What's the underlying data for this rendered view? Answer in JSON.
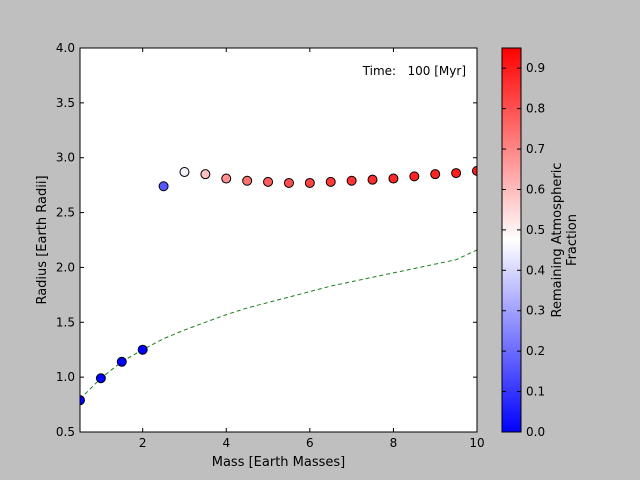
{
  "chart_data": {
    "type": "scatter",
    "xlabel": "Mass [Earth Masses]",
    "ylabel": "Radius [Earth Radii]",
    "xlim": [
      0.5,
      10
    ],
    "ylim": [
      0.5,
      4.0
    ],
    "x_ticks": [
      2,
      4,
      6,
      8,
      10
    ],
    "y_ticks": [
      0.5,
      1.0,
      1.5,
      2.0,
      2.5,
      3.0,
      3.5,
      4.0
    ],
    "x_tick_labels": [
      "2",
      "4",
      "6",
      "8",
      "10"
    ],
    "y_tick_labels": [
      "0.5",
      "1.0",
      "1.5",
      "2.0",
      "2.5",
      "3.0",
      "3.5",
      "4.0"
    ],
    "annotation": "Time:   100 [Myr]",
    "grid": false,
    "points": [
      {
        "mass": 0.5,
        "radius": 0.79,
        "fraction": 0.0
      },
      {
        "mass": 1.0,
        "radius": 0.99,
        "fraction": 0.0
      },
      {
        "mass": 1.5,
        "radius": 1.14,
        "fraction": 0.0
      },
      {
        "mass": 2.0,
        "radius": 1.25,
        "fraction": 0.0
      },
      {
        "mass": 2.5,
        "radius": 2.74,
        "fraction": 0.17
      },
      {
        "mass": 3.0,
        "radius": 2.87,
        "fraction": 0.48
      },
      {
        "mass": 3.5,
        "radius": 2.85,
        "fraction": 0.62
      },
      {
        "mass": 4.0,
        "radius": 2.81,
        "fraction": 0.72
      },
      {
        "mass": 4.5,
        "radius": 2.79,
        "fraction": 0.78
      },
      {
        "mass": 5.0,
        "radius": 2.78,
        "fraction": 0.82
      },
      {
        "mass": 5.5,
        "radius": 2.77,
        "fraction": 0.85
      },
      {
        "mass": 6.0,
        "radius": 2.77,
        "fraction": 0.87
      },
      {
        "mass": 6.5,
        "radius": 2.78,
        "fraction": 0.89
      },
      {
        "mass": 7.0,
        "radius": 2.79,
        "fraction": 0.9
      },
      {
        "mass": 7.5,
        "radius": 2.8,
        "fraction": 0.91
      },
      {
        "mass": 8.0,
        "radius": 2.81,
        "fraction": 0.92
      },
      {
        "mass": 8.5,
        "radius": 2.83,
        "fraction": 0.93
      },
      {
        "mass": 9.0,
        "radius": 2.85,
        "fraction": 0.93
      },
      {
        "mass": 9.5,
        "radius": 2.86,
        "fraction": 0.94
      },
      {
        "mass": 10.0,
        "radius": 2.88,
        "fraction": 0.95
      }
    ],
    "dashed_curve": {
      "color": "#1a7f1a",
      "style": "dashed",
      "x": [
        0.5,
        1.0,
        1.5,
        2.0,
        2.5,
        3.0,
        3.5,
        4.0,
        4.5,
        5.0,
        5.5,
        6.0,
        6.5,
        7.0,
        7.5,
        8.0,
        8.5,
        9.0,
        9.5,
        10.0
      ],
      "y": [
        0.8,
        0.99,
        1.14,
        1.25,
        1.35,
        1.43,
        1.5,
        1.57,
        1.63,
        1.68,
        1.73,
        1.78,
        1.83,
        1.87,
        1.91,
        1.95,
        1.99,
        2.03,
        2.07,
        2.16
      ]
    },
    "colorbar": {
      "label": "Remaining Atmospheric\nFraction",
      "range": [
        0.0,
        0.95
      ],
      "ticks": [
        0.0,
        0.1,
        0.2,
        0.3,
        0.4,
        0.5,
        0.6,
        0.7,
        0.8,
        0.9
      ],
      "tick_labels": [
        "0.0",
        "0.1",
        "0.2",
        "0.3",
        "0.4",
        "0.5",
        "0.6",
        "0.7",
        "0.8",
        "0.9"
      ],
      "colormap": "bwr",
      "colors": [
        "#0000ff",
        "#ffffff",
        "#ff0000"
      ]
    }
  }
}
